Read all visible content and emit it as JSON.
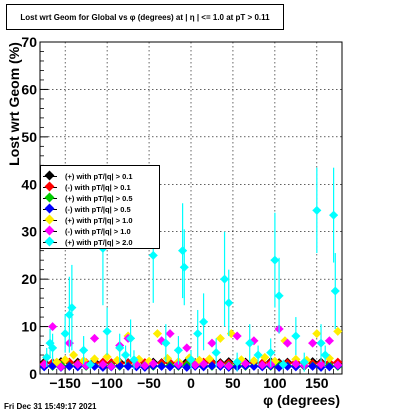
{
  "title": "Lost wrt Geom for Global vs φ (degrees) at |  η | <= 1.0 at pT > 0.11",
  "timestamp": "Fri Dec 31 15:49:17 2021",
  "chart_data": {
    "type": "scatter",
    "xlabel": "φ (degrees)",
    "ylabel": "Lost wrt Geom (%)",
    "xlim": [
      -180,
      180
    ],
    "ylim": [
      0,
      70
    ],
    "x_ticks": [
      -150,
      -100,
      -50,
      0,
      50,
      100,
      150
    ],
    "x_tick_labels": [
      "−150",
      "−100",
      "−50",
      "0",
      "50",
      "100",
      "150"
    ],
    "y_ticks": [
      0,
      10,
      20,
      30,
      40,
      50,
      60,
      70
    ],
    "grid": true,
    "legend_placement": "middle-left",
    "series": [
      {
        "name": "(+) with pT/|q| > 0.1",
        "color": "#000000",
        "x": [
          -175,
          -165,
          -155,
          -145,
          -135,
          -125,
          -115,
          -105,
          -95,
          -85,
          -75,
          -65,
          -55,
          -45,
          -35,
          -25,
          -15,
          -5,
          5,
          15,
          25,
          35,
          45,
          55,
          65,
          75,
          85,
          95,
          105,
          115,
          125,
          135,
          145,
          155,
          165,
          175
        ],
        "y": [
          2.5,
          2.3,
          2.6,
          2.4,
          2.5,
          2.2,
          2.6,
          2.4,
          2.3,
          2.5,
          2.4,
          2.6,
          2.3,
          2.5,
          2.4,
          2.3,
          2.5,
          2.6,
          2.4,
          2.2,
          2.5,
          2.4,
          2.6,
          2.3,
          2.5,
          2.4,
          2.3,
          2.6,
          2.4,
          2.5,
          2.3,
          2.4,
          2.6,
          2.5,
          2.3,
          2.4
        ]
      },
      {
        "name": "(-) with pT/|q| > 0.1",
        "color": "#ff0000",
        "x": [
          -175,
          -165,
          -155,
          -145,
          -135,
          -125,
          -115,
          -105,
          -95,
          -85,
          -75,
          -65,
          -55,
          -45,
          -35,
          -25,
          -15,
          -5,
          5,
          15,
          25,
          35,
          45,
          55,
          65,
          75,
          85,
          95,
          105,
          115,
          125,
          135,
          145,
          155,
          165,
          175
        ],
        "y": [
          2.2,
          2.4,
          2.3,
          2.5,
          2.2,
          2.4,
          2.3,
          2.5,
          2.4,
          2.2,
          2.3,
          2.5,
          2.4,
          2.2,
          2.3,
          2.4,
          2.5,
          2.2,
          2.3,
          2.5,
          2.4,
          2.2,
          2.3,
          2.4,
          2.2,
          2.5,
          2.3,
          2.4,
          2.2,
          2.3,
          2.5,
          2.4,
          2.2,
          2.3,
          2.4,
          2.5
        ]
      },
      {
        "name": "(+) with pT/|q| > 0.5",
        "color": "#00cc00",
        "x": [
          -175,
          -165,
          -155,
          -145,
          -135,
          -125,
          -115,
          -105,
          -95,
          -85,
          -75,
          -65,
          -55,
          -45,
          -35,
          -25,
          -15,
          -5,
          5,
          15,
          25,
          35,
          45,
          55,
          65,
          75,
          85,
          95,
          105,
          115,
          125,
          135,
          145,
          155,
          165,
          175
        ],
        "y": [
          1.8,
          1.6,
          1.9,
          1.7,
          1.8,
          1.6,
          1.7,
          1.9,
          1.8,
          1.6,
          1.7,
          1.8,
          1.9,
          1.6,
          1.7,
          1.8,
          1.6,
          1.9,
          1.7,
          1.8,
          1.6,
          1.7,
          1.9,
          1.8,
          1.6,
          1.7,
          1.8,
          1.6,
          1.9,
          1.7,
          1.8,
          1.6,
          1.7,
          1.9,
          1.8,
          1.6
        ]
      },
      {
        "name": "(-) with pT/|q| > 0.5",
        "color": "#0000ff",
        "x": [
          -175,
          -165,
          -155,
          -145,
          -135,
          -125,
          -115,
          -105,
          -95,
          -85,
          -75,
          -65,
          -55,
          -45,
          -35,
          -25,
          -15,
          -5,
          5,
          15,
          25,
          35,
          45,
          55,
          65,
          75,
          85,
          95,
          105,
          115,
          125,
          135,
          145,
          155,
          165,
          175
        ],
        "y": [
          1.5,
          1.7,
          1.4,
          1.6,
          1.5,
          1.7,
          1.6,
          1.4,
          1.5,
          1.7,
          1.6,
          1.5,
          1.4,
          1.7,
          1.6,
          1.5,
          1.7,
          1.4,
          1.6,
          1.5,
          1.7,
          1.6,
          1.4,
          1.5,
          1.7,
          1.6,
          1.5,
          1.7,
          1.4,
          1.6,
          1.5,
          1.7,
          1.6,
          1.4,
          1.5,
          1.7
        ]
      },
      {
        "name": "(+) with pT/|q| > 1.0",
        "color": "#ffee00",
        "x": [
          -172,
          -160,
          -150,
          -140,
          -128,
          -115,
          -100,
          -88,
          -75,
          -62,
          -50,
          -40,
          -28,
          -15,
          -2,
          10,
          22,
          35,
          48,
          60,
          75,
          88,
          100,
          112,
          125,
          138,
          150,
          165,
          175
        ],
        "y": [
          3.5,
          2.5,
          3.0,
          4.0,
          2.8,
          3.2,
          3.6,
          2.9,
          8.0,
          3.1,
          2.7,
          8.5,
          3.3,
          2.6,
          3.4,
          2.9,
          3.2,
          7.5,
          8.5,
          3.0,
          2.8,
          3.5,
          2.7,
          7.0,
          3.1,
          2.9,
          8.5,
          3.3,
          9.0
        ]
      },
      {
        "name": "(-) with pT/|q| > 1.0",
        "color": "#ff00ff",
        "x": [
          -175,
          -165,
          -155,
          -145,
          -135,
          -125,
          -115,
          -105,
          -95,
          -85,
          -75,
          -65,
          -55,
          -45,
          -35,
          -25,
          -15,
          -5,
          5,
          15,
          25,
          35,
          45,
          55,
          65,
          75,
          85,
          95,
          105,
          115,
          125,
          135,
          145,
          155,
          165,
          175
        ],
        "y": [
          2.0,
          10.0,
          1.5,
          6.5,
          2.0,
          1.8,
          7.5,
          2.0,
          1.6,
          6.0,
          7.5,
          2.0,
          1.8,
          2.2,
          7.0,
          8.5,
          2.0,
          5.5,
          1.9,
          2.1,
          6.5,
          2.0,
          1.7,
          8.0,
          2.2,
          7.0,
          1.9,
          2.0,
          9.5,
          6.5,
          2.1,
          1.8,
          6.5,
          2.0,
          7.0,
          1.9
        ]
      },
      {
        "name": "(+) with pT/|q| > 2.0",
        "color": "#00ffff",
        "x": [
          -172,
          -168,
          -165,
          -150,
          -145,
          -142,
          -128,
          -120,
          -105,
          -100,
          -85,
          -78,
          -72,
          -68,
          -45,
          -30,
          -15,
          -10,
          -8,
          0,
          8,
          15,
          30,
          40,
          45,
          55,
          70,
          80,
          95,
          100,
          105,
          110,
          125,
          135,
          150,
          155,
          160,
          170,
          172
        ],
        "y": [
          3.5,
          6.5,
          5.5,
          8.5,
          12.5,
          14.0,
          5.0,
          2.0,
          26.5,
          9.0,
          5.5,
          4.0,
          7.5,
          3.0,
          25.0,
          6.5,
          5.0,
          26.0,
          22.5,
          3.0,
          8.5,
          11.0,
          4.5,
          20.0,
          15.0,
          2.5,
          6.5,
          4.0,
          4.5,
          24.0,
          16.5,
          2.0,
          8.0,
          2.5,
          34.5,
          6.5,
          4.0,
          33.5,
          17.5
        ],
        "err": [
          2,
          3,
          3,
          4,
          8,
          9,
          3,
          1,
          12,
          5,
          3,
          2,
          4,
          2,
          10,
          4,
          3,
          10,
          8,
          2,
          5,
          6,
          3,
          10,
          7,
          2,
          4,
          2,
          3,
          10,
          8,
          1,
          4,
          2,
          9,
          4,
          2,
          10,
          8
        ]
      }
    ]
  }
}
